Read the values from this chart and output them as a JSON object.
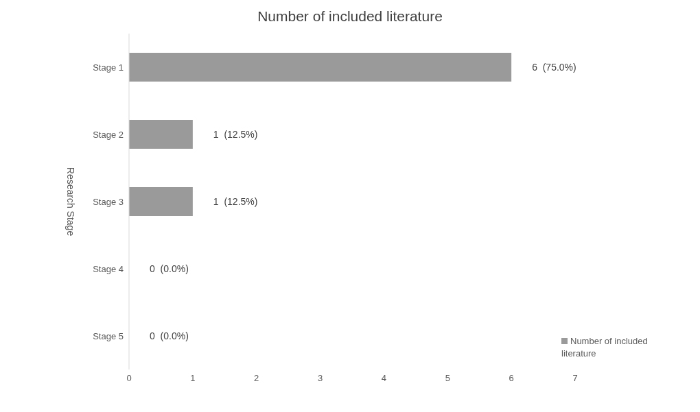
{
  "chart_data": {
    "type": "bar",
    "orientation": "horizontal",
    "title": "Number of included literature",
    "ylabel": "Research Stage",
    "categories": [
      "Stage 1",
      "Stage 2",
      "Stage 3",
      "Stage 4",
      "Stage 5"
    ],
    "series": [
      {
        "name": "Number of included literature",
        "color": "#9a9a9a",
        "values": [
          6,
          1,
          1,
          0,
          0
        ],
        "value_labels": [
          "6  (75.0%)",
          "1  (12.5%)",
          "1  (12.5%)",
          "0  (0.0%)",
          "0  (0.0%)"
        ]
      }
    ],
    "xlim": [
      0,
      7
    ],
    "xticks": [
      0,
      1,
      2,
      3,
      4,
      5,
      6,
      7
    ],
    "grid": false,
    "legend": "bottom right"
  }
}
